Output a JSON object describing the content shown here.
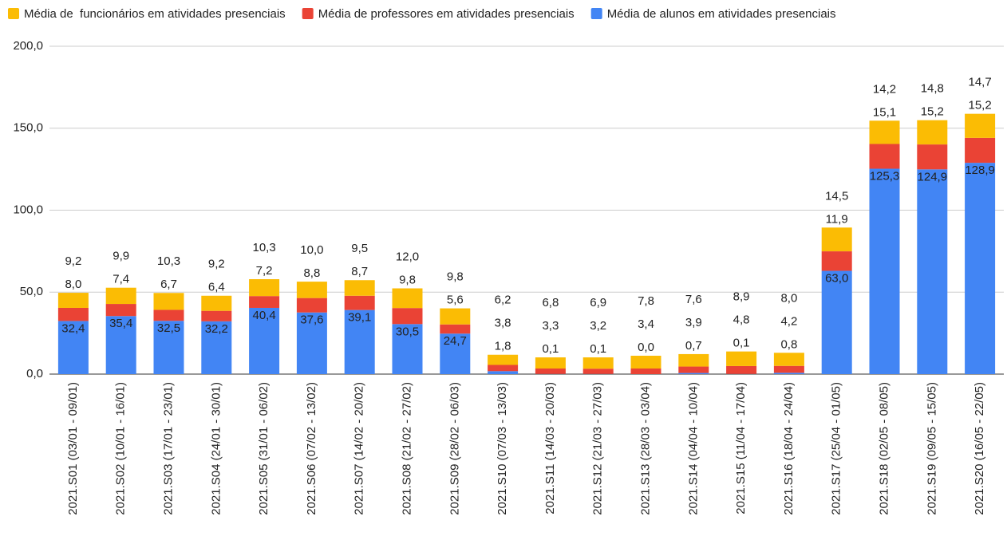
{
  "chart_data": {
    "type": "stacked_bar",
    "categories": [
      "2021.S01 (03/01 - 09/01)",
      "2021.S02 (10/01 - 16/01)",
      "2021.S03 (17/01 - 23/01)",
      "2021.S04 (24/01 - 30/01)",
      "2021.S05 (31/01 - 06/02)",
      "2021.S06 (07/02 - 13/02)",
      "2021.S07 (14/02 - 20/02)",
      "2021.S08 (21/02 - 27/02)",
      "2021.S09 (28/02 - 06/03)",
      "2021.S10 (07/03 - 13/03)",
      "2021.S11 (14/03 - 20/03)",
      "2021.S12 (21/03 - 27/03)",
      "2021.S13 (28/03 - 03/04)",
      "2021.S14 (04/04 - 10/04)",
      "2021.S15 (11/04 - 17/04)",
      "2021.S16 (18/04 - 24/04)",
      "2021.S17 (25/04 - 01/05)",
      "2021.S18 (02/05 - 08/05)",
      "2021.S19 (09/05 - 15/05)",
      "2021.S20 (16/05 - 22/05)"
    ],
    "series": [
      {
        "name": "Média de alunos em atividades presenciais",
        "color": "#4285f4",
        "values": [
          32.4,
          35.4,
          32.5,
          32.2,
          40.4,
          37.6,
          39.1,
          30.5,
          24.7,
          1.8,
          0.1,
          0.1,
          0.0,
          0.7,
          0.1,
          0.8,
          63.0,
          125.3,
          124.9,
          128.9
        ],
        "value_labels": [
          "32,4",
          "35,4",
          "32,5",
          "32,2",
          "40,4",
          "37,6",
          "39,1",
          "30,5",
          "24,7",
          "1,8",
          "0,1",
          "0,1",
          "0,0",
          "0,7",
          "0,1",
          "0,8",
          "63,0",
          "125,3",
          "124,9",
          "128,9"
        ]
      },
      {
        "name": "Média de professores em atividades presenciais",
        "color": "#ea4335",
        "values": [
          8.0,
          7.4,
          6.7,
          6.4,
          7.2,
          8.8,
          8.7,
          9.8,
          5.6,
          3.8,
          3.3,
          3.2,
          3.4,
          3.9,
          4.8,
          4.2,
          11.9,
          15.1,
          15.2,
          15.2
        ],
        "value_labels": [
          "8,0",
          "7,4",
          "6,7",
          "6,4",
          "7,2",
          "8,8",
          "8,7",
          "9,8",
          "5,6",
          "3,8",
          "3,3",
          "3,2",
          "3,4",
          "3,9",
          "4,8",
          "4,2",
          "11,9",
          "15,1",
          "15,2",
          "15,2"
        ]
      },
      {
        "name": "Média de  funcionários em atividades presenciais",
        "color": "#fbbc04",
        "values": [
          9.2,
          9.9,
          10.3,
          9.2,
          10.3,
          10.0,
          9.5,
          12.0,
          9.8,
          6.2,
          6.8,
          6.9,
          7.8,
          7.6,
          8.9,
          8.0,
          14.5,
          14.2,
          14.8,
          14.7
        ],
        "value_labels": [
          "9,2",
          "9,9",
          "10,3",
          "9,2",
          "10,3",
          "10,0",
          "9,5",
          "12,0",
          "9,8",
          "6,2",
          "6,8",
          "6,9",
          "7,8",
          "7,6",
          "8,9",
          "8,0",
          "14,5",
          "14,2",
          "14,8",
          "14,7"
        ]
      }
    ],
    "ylim": [
      0,
      200
    ],
    "yticks": [
      {
        "value": 0,
        "label": "0,0"
      },
      {
        "value": 50,
        "label": "50,0"
      },
      {
        "value": 100,
        "label": "100,0"
      },
      {
        "value": 150,
        "label": "150,0"
      },
      {
        "value": 200,
        "label": "200,0"
      }
    ],
    "grid": true,
    "legend": "top"
  }
}
